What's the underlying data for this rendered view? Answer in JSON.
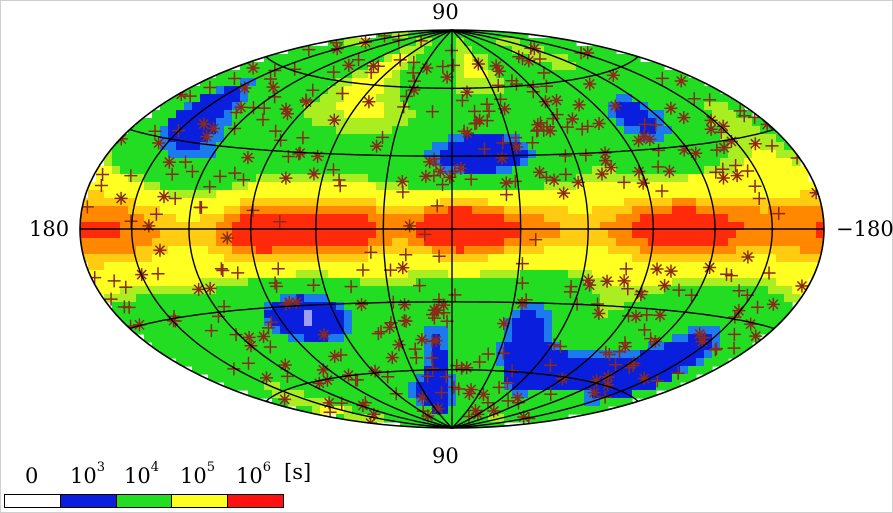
{
  "map": {
    "projection": "Hammer-Aitoff",
    "labels": {
      "top": "90",
      "bottom": "90",
      "left": "180",
      "right": "−180"
    },
    "color_scale": {
      "tick_base": "10",
      "ticks": [
        {
          "text": "0",
          "exp": ""
        },
        {
          "text": "10",
          "exp": "3"
        },
        {
          "text": "10",
          "exp": "4"
        },
        {
          "text": "10",
          "exp": "5"
        },
        {
          "text": "10",
          "exp": "6"
        }
      ],
      "unit": "[s]",
      "colors": [
        "#ffffff",
        "#0a1fdd",
        "#22dd22",
        "#ffff22",
        "#ff1111"
      ]
    },
    "marker_color": "#8b2a1a",
    "graticule_color": "#000000"
  }
}
